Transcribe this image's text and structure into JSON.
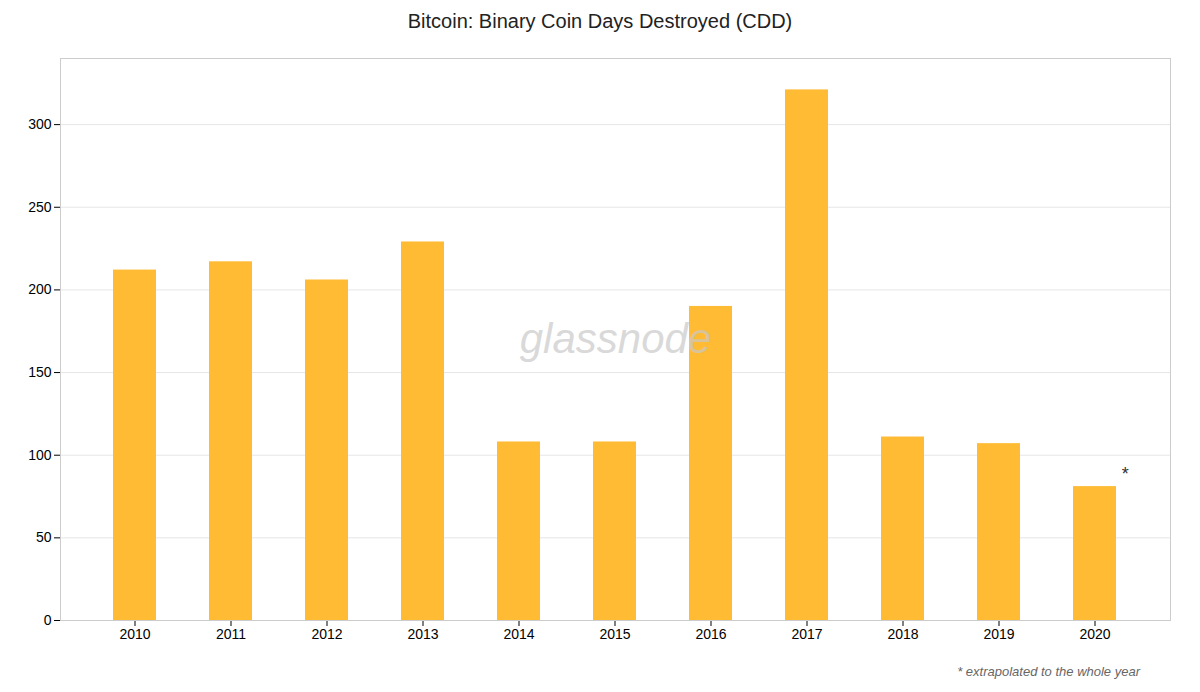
{
  "chart_data": {
    "type": "bar",
    "title": "Bitcoin: Binary Coin Days Destroyed (CDD)",
    "categories": [
      "2010",
      "2011",
      "2012",
      "2013",
      "2014",
      "2015",
      "2016",
      "2017",
      "2018",
      "2019",
      "2020"
    ],
    "values": [
      212,
      217,
      206,
      229,
      108,
      108,
      190,
      321,
      111,
      107,
      81
    ],
    "color": "#FFBB33",
    "ylim": [
      0,
      340
    ],
    "yticks": [
      0,
      50,
      100,
      150,
      200,
      250,
      300
    ],
    "grid": true,
    "annotations": [
      {
        "text": "*",
        "category": "2020"
      }
    ],
    "watermark": "glassnode",
    "footnote": "* extrapolated to the whole year"
  }
}
